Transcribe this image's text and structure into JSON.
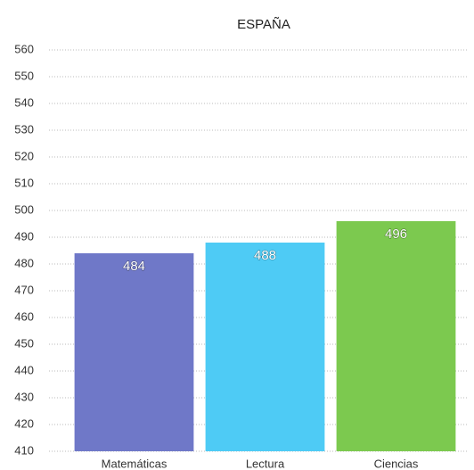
{
  "chart_data": {
    "type": "bar",
    "title": "ESPAÑA",
    "categories": [
      "Matemáticas",
      "Lectura",
      "Ciencias"
    ],
    "values": [
      484,
      488,
      496
    ],
    "colors": [
      "#6f78c8",
      "#4ecbf5",
      "#7cc94f"
    ],
    "ylim": [
      410,
      560
    ],
    "yticks": [
      410,
      420,
      430,
      440,
      450,
      460,
      470,
      480,
      490,
      500,
      510,
      520,
      530,
      540,
      550,
      560
    ],
    "grid": true
  }
}
